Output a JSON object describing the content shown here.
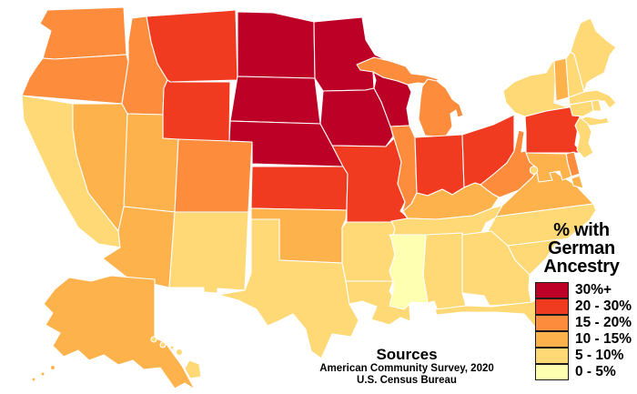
{
  "figure": {
    "background": "#ffffff"
  },
  "legend": {
    "title_lines": [
      "% with",
      "German",
      "Ancestry"
    ],
    "items": [
      {
        "id": "b30",
        "label": "30%+",
        "color": "#bd0026"
      },
      {
        "id": "b20",
        "label": "20 - 30%",
        "color": "#f03b20"
      },
      {
        "id": "b15",
        "label": "15 - 20%",
        "color": "#fd8d3c"
      },
      {
        "id": "b10",
        "label": "10 - 15%",
        "color": "#feb24c"
      },
      {
        "id": "b5",
        "label": "5 - 10%",
        "color": "#fed976"
      },
      {
        "id": "b0",
        "label": "0 - 5%",
        "color": "#ffffb2"
      }
    ]
  },
  "sources": {
    "heading": "Sources",
    "line1": "American Community Survey, 2020",
    "line2": "U.S. Census Bureau"
  },
  "map": {
    "stroke_color": "#ffffff",
    "states": [
      {
        "id": "WA",
        "name": "Washington",
        "category": "b15"
      },
      {
        "id": "OR",
        "name": "Oregon",
        "category": "b15"
      },
      {
        "id": "CA",
        "name": "California",
        "category": "b5"
      },
      {
        "id": "NV",
        "name": "Nevada",
        "category": "b10"
      },
      {
        "id": "ID",
        "name": "Idaho",
        "category": "b15"
      },
      {
        "id": "MT",
        "name": "Montana",
        "category": "b20"
      },
      {
        "id": "WY",
        "name": "Wyoming",
        "category": "b20"
      },
      {
        "id": "UT",
        "name": "Utah",
        "category": "b10"
      },
      {
        "id": "CO",
        "name": "Colorado",
        "category": "b15"
      },
      {
        "id": "AZ",
        "name": "Arizona",
        "category": "b10"
      },
      {
        "id": "NM",
        "name": "New Mexico",
        "category": "b5"
      },
      {
        "id": "ND",
        "name": "North Dakota",
        "category": "b30"
      },
      {
        "id": "SD",
        "name": "South Dakota",
        "category": "b30"
      },
      {
        "id": "NE",
        "name": "Nebraska",
        "category": "b30"
      },
      {
        "id": "KS",
        "name": "Kansas",
        "category": "b20"
      },
      {
        "id": "OK",
        "name": "Oklahoma",
        "category": "b10"
      },
      {
        "id": "TX",
        "name": "Texas",
        "category": "b5"
      },
      {
        "id": "MN",
        "name": "Minnesota",
        "category": "b30"
      },
      {
        "id": "IA",
        "name": "Iowa",
        "category": "b30"
      },
      {
        "id": "MO",
        "name": "Missouri",
        "category": "b20"
      },
      {
        "id": "AR",
        "name": "Arkansas",
        "category": "b5"
      },
      {
        "id": "LA",
        "name": "Louisiana",
        "category": "b5"
      },
      {
        "id": "WI",
        "name": "Wisconsin",
        "category": "b30"
      },
      {
        "id": "MI",
        "name": "Michigan",
        "category": "b15"
      },
      {
        "id": "IL",
        "name": "Illinois",
        "category": "b15"
      },
      {
        "id": "IN",
        "name": "Indiana",
        "category": "b20"
      },
      {
        "id": "OH",
        "name": "Ohio",
        "category": "b20"
      },
      {
        "id": "KY",
        "name": "Kentucky",
        "category": "b10"
      },
      {
        "id": "TN",
        "name": "Tennessee",
        "category": "b5"
      },
      {
        "id": "WV",
        "name": "West Virginia",
        "category": "b15"
      },
      {
        "id": "VA",
        "name": "Virginia",
        "category": "b10"
      },
      {
        "id": "NC",
        "name": "North Carolina",
        "category": "b5"
      },
      {
        "id": "SC",
        "name": "South Carolina",
        "category": "b5"
      },
      {
        "id": "GA",
        "name": "Georgia",
        "category": "b5"
      },
      {
        "id": "AL",
        "name": "Alabama",
        "category": "b5"
      },
      {
        "id": "MS",
        "name": "Mississippi",
        "category": "b0"
      },
      {
        "id": "FL",
        "name": "Florida",
        "category": "b5"
      },
      {
        "id": "PA",
        "name": "Pennsylvania",
        "category": "b20"
      },
      {
        "id": "NY",
        "name": "New York",
        "category": "b5"
      },
      {
        "id": "NJ",
        "name": "New Jersey",
        "category": "b5"
      },
      {
        "id": "DE",
        "name": "Delaware",
        "category": "b15"
      },
      {
        "id": "MD",
        "name": "Maryland",
        "category": "b10"
      },
      {
        "id": "DC",
        "name": "District of Columbia",
        "category": "b5"
      },
      {
        "id": "VT",
        "name": "Vermont",
        "category": "b10"
      },
      {
        "id": "NH",
        "name": "New Hampshire",
        "category": "b5"
      },
      {
        "id": "MA",
        "name": "Massachusetts",
        "category": "b5"
      },
      {
        "id": "RI",
        "name": "Rhode Island",
        "category": "b5"
      },
      {
        "id": "CT",
        "name": "Connecticut",
        "category": "b5"
      },
      {
        "id": "ME",
        "name": "Maine",
        "category": "b5"
      },
      {
        "id": "AK",
        "name": "Alaska",
        "category": "b10"
      },
      {
        "id": "HI",
        "name": "Hawaii",
        "category": "b5"
      }
    ]
  },
  "chart_data": {
    "type": "heatmap",
    "subtype": "us-states-choropleth",
    "title": "% with German Ancestry",
    "legend_position": "right",
    "categories": [
      "30%+",
      "20 - 30%",
      "15 - 20%",
      "10 - 15%",
      "5 - 10%",
      "0 - 5%"
    ],
    "palette": [
      "#bd0026",
      "#f03b20",
      "#fd8d3c",
      "#feb24c",
      "#fed976",
      "#ffffb2"
    ],
    "groups": {
      "30%+": [
        "North Dakota",
        "South Dakota",
        "Nebraska",
        "Minnesota",
        "Iowa",
        "Wisconsin"
      ],
      "20 - 30%": [
        "Montana",
        "Wyoming",
        "Kansas",
        "Missouri",
        "Indiana",
        "Ohio",
        "Pennsylvania"
      ],
      "15 - 20%": [
        "Washington",
        "Oregon",
        "Idaho",
        "Colorado",
        "Illinois",
        "Michigan",
        "West Virginia",
        "Delaware"
      ],
      "10 - 15%": [
        "Nevada",
        "Utah",
        "Arizona",
        "Oklahoma",
        "Alaska",
        "Kentucky",
        "Virginia",
        "Maryland",
        "Vermont"
      ],
      "5 - 10%": [
        "California",
        "New Mexico",
        "Texas",
        "Arkansas",
        "Louisiana",
        "Tennessee",
        "North Carolina",
        "South Carolina",
        "Georgia",
        "Alabama",
        "Florida",
        "Hawaii",
        "New York",
        "New Jersey",
        "Maine",
        "New Hampshire",
        "Massachusetts",
        "Connecticut",
        "Rhode Island",
        "District of Columbia"
      ],
      "0 - 5%": [
        "Mississippi"
      ]
    },
    "sources": [
      "American Community Survey, 2020",
      "U.S. Census Bureau"
    ]
  }
}
